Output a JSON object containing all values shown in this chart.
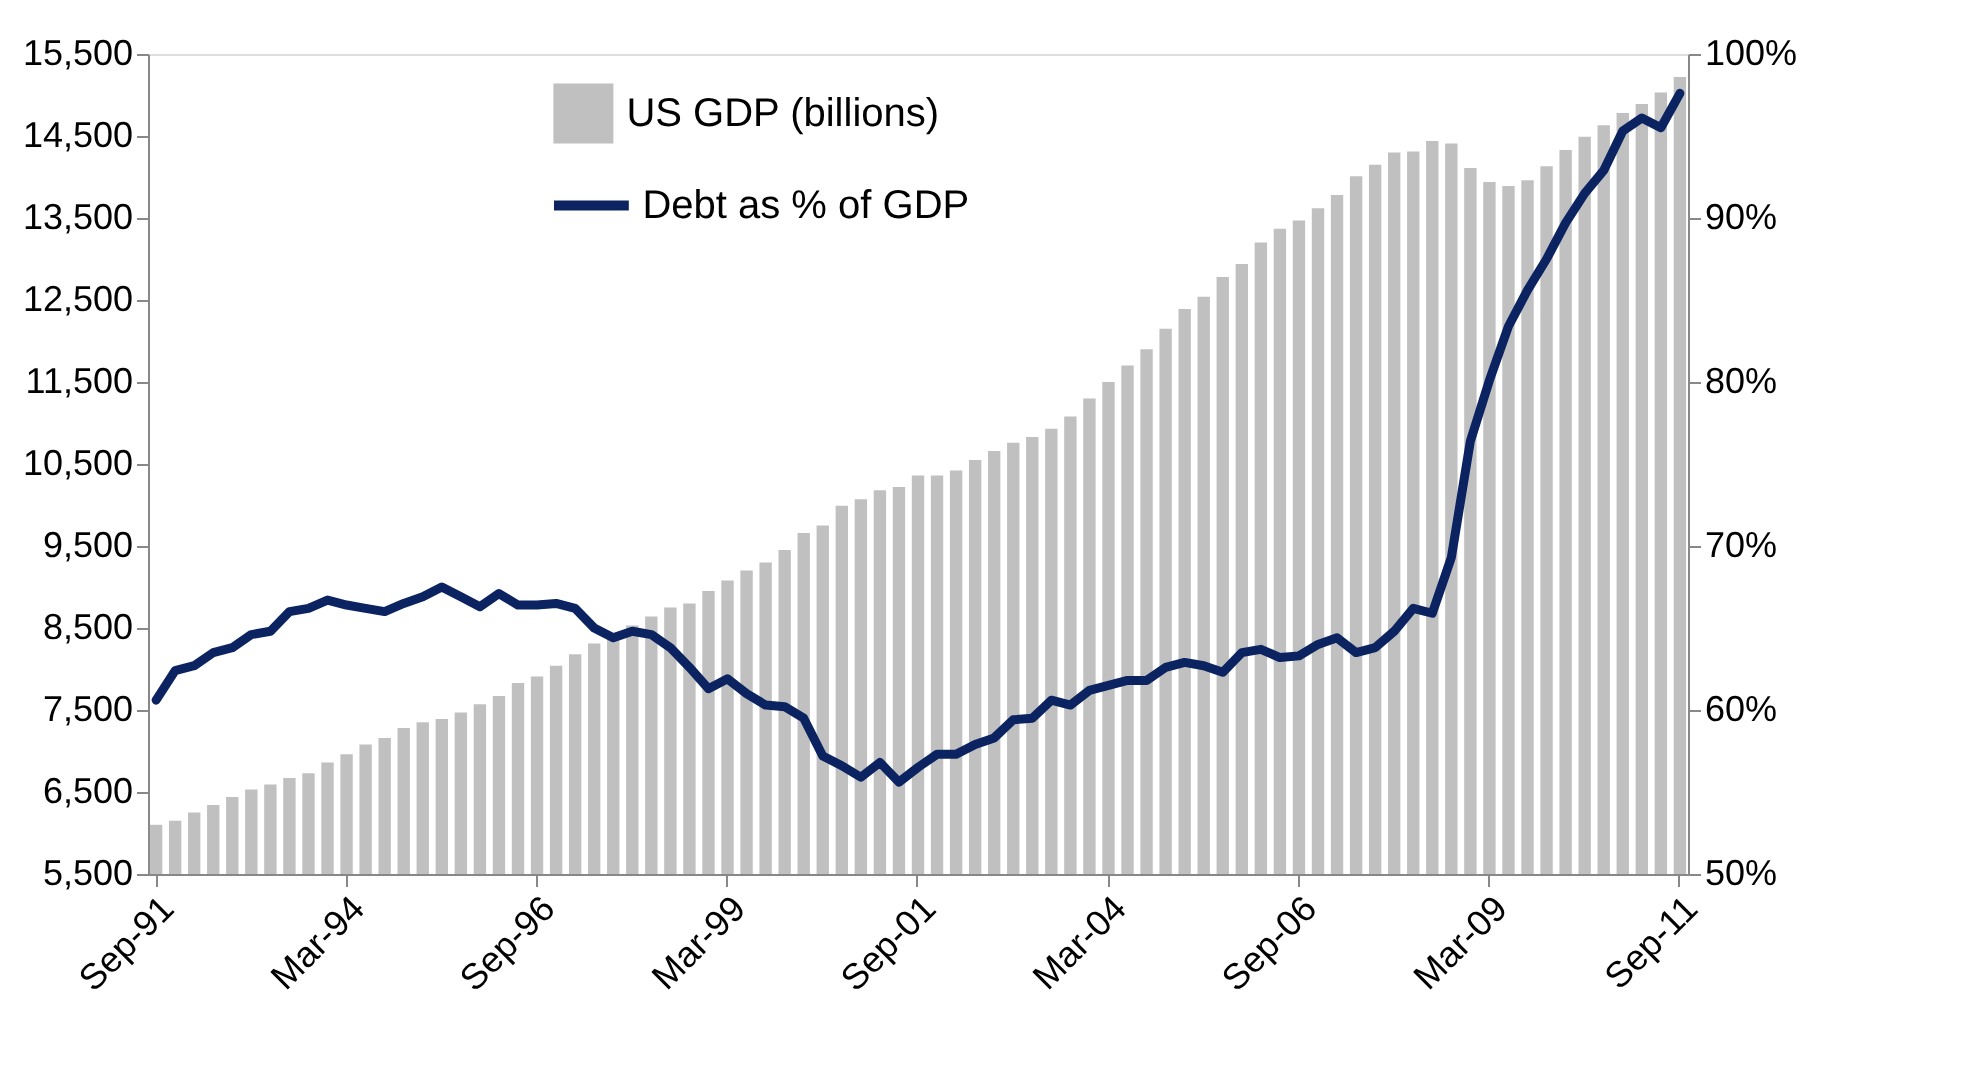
{
  "chart_data": {
    "type": "bar",
    "categories": [
      "Sep-91",
      null,
      null,
      null,
      null,
      null,
      null,
      null,
      null,
      null,
      "Mar-94",
      null,
      null,
      null,
      null,
      null,
      null,
      null,
      null,
      null,
      "Sep-96",
      null,
      null,
      null,
      null,
      null,
      null,
      null,
      null,
      null,
      "Mar-99",
      null,
      null,
      null,
      null,
      null,
      null,
      null,
      null,
      null,
      "Sep-01",
      null,
      null,
      null,
      null,
      null,
      null,
      null,
      null,
      null,
      "Mar-04",
      null,
      null,
      null,
      null,
      null,
      null,
      null,
      null,
      null,
      "Sep-06",
      null,
      null,
      null,
      null,
      null,
      null,
      null,
      null,
      null,
      "Mar-09",
      null,
      null,
      null,
      null,
      null,
      null,
      null,
      null,
      null,
      "Sep-11"
    ],
    "series": [
      {
        "name": "US GDP (billions)",
        "color": "#c0c0c0",
        "values": [
          6100,
          6150,
          6250,
          6340,
          6440,
          6530,
          6590,
          6670,
          6730,
          6860,
          6960,
          7080,
          7160,
          7280,
          7350,
          7390,
          7470,
          7570,
          7670,
          7830,
          7910,
          8040,
          8180,
          8310,
          8380,
          8530,
          8640,
          8750,
          8800,
          8950,
          9080,
          9200,
          9300,
          9450,
          9660,
          9750,
          9990,
          10070,
          10180,
          10220,
          10360,
          10360,
          10420,
          10550,
          10660,
          10760,
          10830,
          10930,
          11080,
          11300,
          11500,
          11700,
          11900,
          12150,
          12390,
          12540,
          12780,
          12940,
          13200,
          13370,
          13470,
          13620,
          13780,
          14010,
          14150,
          14300,
          14310,
          14440,
          14410,
          14110,
          13940,
          13890,
          13960,
          14130,
          14330,
          14490,
          14630,
          14780,
          14890,
          15030,
          15220
        ]
      },
      {
        "name": "Debt as % of GDP",
        "type": "line",
        "axis": "y2",
        "color": "#0b2461",
        "values": [
          60.6,
          62.4,
          62.7,
          63.5,
          63.8,
          64.6,
          64.8,
          66.0,
          66.2,
          66.7,
          66.4,
          66.2,
          66.0,
          66.5,
          66.9,
          67.5,
          66.9,
          66.3,
          67.1,
          66.4,
          66.4,
          66.5,
          66.2,
          65.0,
          64.4,
          64.8,
          64.6,
          63.8,
          62.6,
          61.3,
          61.9,
          61.0,
          60.3,
          60.2,
          59.5,
          57.2,
          56.6,
          55.9,
          56.8,
          55.6,
          56.5,
          57.3,
          57.3,
          57.9,
          58.3,
          59.4,
          59.5,
          60.6,
          60.3,
          61.2,
          61.5,
          61.8,
          61.8,
          62.6,
          62.9,
          62.7,
          62.3,
          63.5,
          63.7,
          63.2,
          63.3,
          64.0,
          64.4,
          63.5,
          63.8,
          64.8,
          66.2,
          65.9,
          69.3,
          76.4,
          80.1,
          83.4,
          85.6,
          87.5,
          89.7,
          91.5,
          92.9,
          95.3,
          96.1,
          95.5,
          97.6
        ]
      }
    ],
    "ylim": [
      5500,
      15500
    ],
    "yticks": [
      {
        "value": 5500,
        "label": "5,500"
      },
      {
        "value": 6500,
        "label": "6,500"
      },
      {
        "value": 7500,
        "label": "7,500"
      },
      {
        "value": 8500,
        "label": "8,500"
      },
      {
        "value": 9500,
        "label": "9,500"
      },
      {
        "value": 10500,
        "label": "10,500"
      },
      {
        "value": 11500,
        "label": "11,500"
      },
      {
        "value": 12500,
        "label": "12,500"
      },
      {
        "value": 13500,
        "label": "13,500"
      },
      {
        "value": 14500,
        "label": "14,500"
      },
      {
        "value": 15500,
        "label": "15,500"
      }
    ],
    "y2lim": [
      50,
      100
    ],
    "y2ticks": [
      {
        "value": 50,
        "label": "50%"
      },
      {
        "value": 60,
        "label": "60%"
      },
      {
        "value": 70,
        "label": "70%"
      },
      {
        "value": 80,
        "label": "80%"
      },
      {
        "value": 90,
        "label": "90%"
      },
      {
        "value": 100,
        "label": "100%"
      }
    ],
    "legend": "top"
  }
}
